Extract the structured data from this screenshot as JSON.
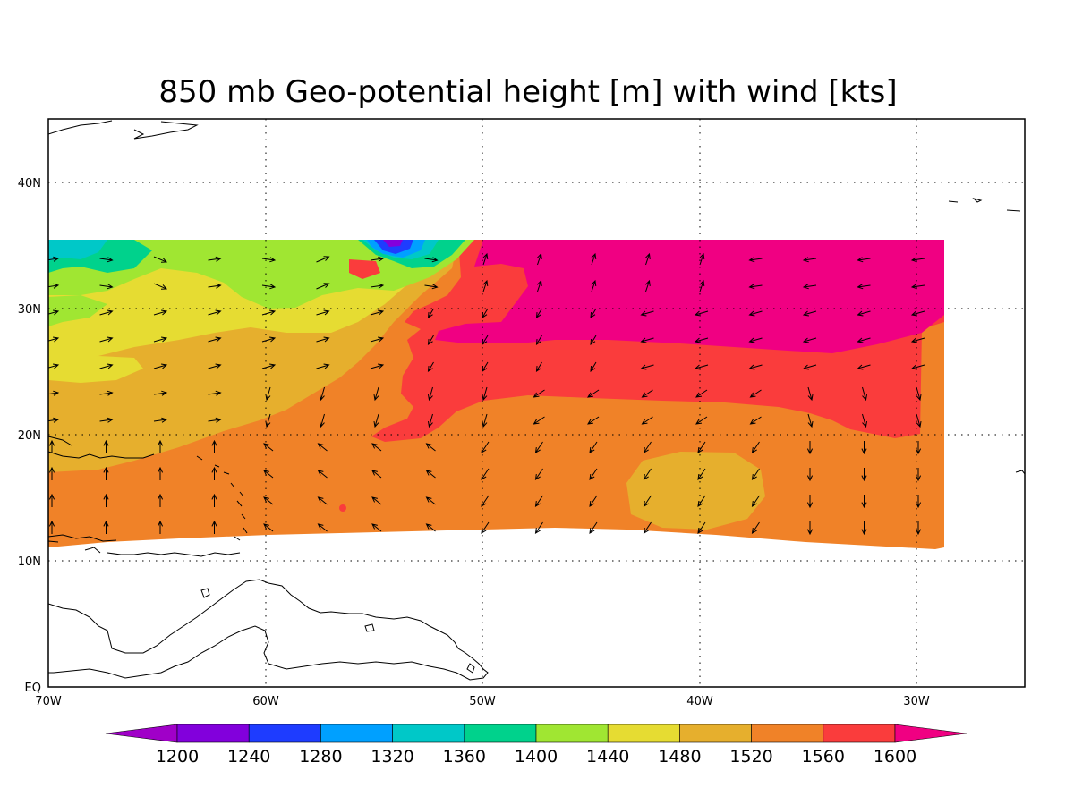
{
  "title": "850 mb Geo-potential height [m] with wind [kts]",
  "map": {
    "lon_range": [
      -70,
      -25
    ],
    "lat_range": [
      0,
      45
    ],
    "field_lon_range": [
      -70,
      -29
    ],
    "field_lat_range": [
      11,
      35.5
    ],
    "x_ticks": [
      {
        "value": -70,
        "label": "70W"
      },
      {
        "value": -60,
        "label": "60W"
      },
      {
        "value": -50,
        "label": "50W"
      },
      {
        "value": -40,
        "label": "40W"
      },
      {
        "value": -30,
        "label": "30W"
      }
    ],
    "y_ticks": [
      {
        "value": 0,
        "label": "EQ"
      },
      {
        "value": 10,
        "label": "10N"
      },
      {
        "value": 20,
        "label": "20N"
      },
      {
        "value": 30,
        "label": "30N"
      },
      {
        "value": 40,
        "label": "40N"
      }
    ],
    "gridlines": "dotted",
    "colorbar": {
      "levels": [
        "1200",
        "1240",
        "1280",
        "1320",
        "1360",
        "1400",
        "1440",
        "1480",
        "1520",
        "1560",
        "1600"
      ],
      "colors": [
        "#a000c8",
        "#8200dc",
        "#1e3cff",
        "#00a0ff",
        "#00c8c8",
        "#00d28c",
        "#a0e632",
        "#e6dc32",
        "#e6af2d",
        "#f08228",
        "#fa3c3c",
        "#f00082"
      ],
      "placement": "bottom"
    }
  }
}
